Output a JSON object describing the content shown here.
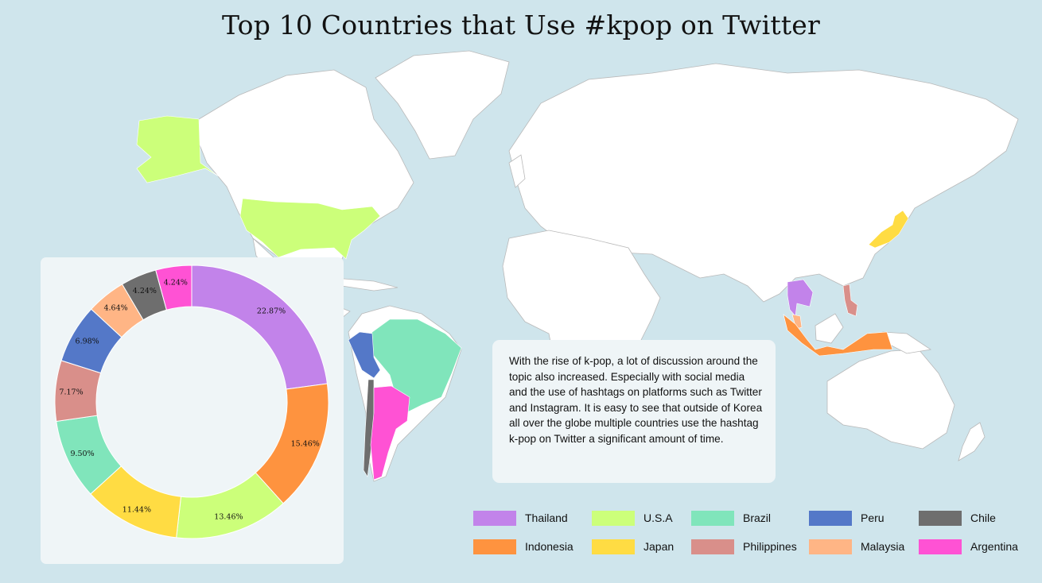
{
  "title": "Top 10 Countries that Use #kpop on Twitter",
  "note": "With the rise of k-pop, a lot of discussion around the topic also increased. Especially with social media and the use of hashtags on platforms such as Twitter and Instagram. It is easy to see that outside of Korea all over the globe multiple countries use the hashtag k-pop on Twitter a significant amount of time.",
  "colors": {
    "Thailand": "#c283ea",
    "U.S.A": "#ccff7a",
    "Brazil": "#80e5bb",
    "Peru": "#5478c8",
    "Chile": "#6e6e6e",
    "Indonesia": "#fe933f",
    "Japan": "#ffdc43",
    "Philippines": "#d98f8a",
    "Malaysia": "#ffb585",
    "Argentina": "#ff52d4"
  },
  "legend": [
    {
      "label": "Thailand"
    },
    {
      "label": "U.S.A"
    },
    {
      "label": "Brazil"
    },
    {
      "label": "Peru"
    },
    {
      "label": "Chile"
    },
    {
      "label": "Indonesia"
    },
    {
      "label": "Japan"
    },
    {
      "label": "Philippines"
    },
    {
      "label": "Malaysia"
    },
    {
      "label": "Argentina"
    }
  ],
  "chart_data": {
    "type": "pie",
    "style": "donut",
    "categories": [
      "Thailand",
      "Indonesia",
      "U.S.A",
      "Japan",
      "Brazil",
      "Philippines",
      "Peru",
      "Malaysia",
      "Chile",
      "Argentina"
    ],
    "values": [
      22.87,
      15.46,
      13.46,
      11.44,
      9.5,
      7.17,
      6.98,
      4.64,
      4.24,
      4.24
    ],
    "labels": [
      "22.87%",
      "15.46%",
      "13.46%",
      "11.44%",
      "9.50%",
      "7.17%",
      "6.98%",
      "4.64%",
      "4.24%",
      "4.24%"
    ]
  }
}
